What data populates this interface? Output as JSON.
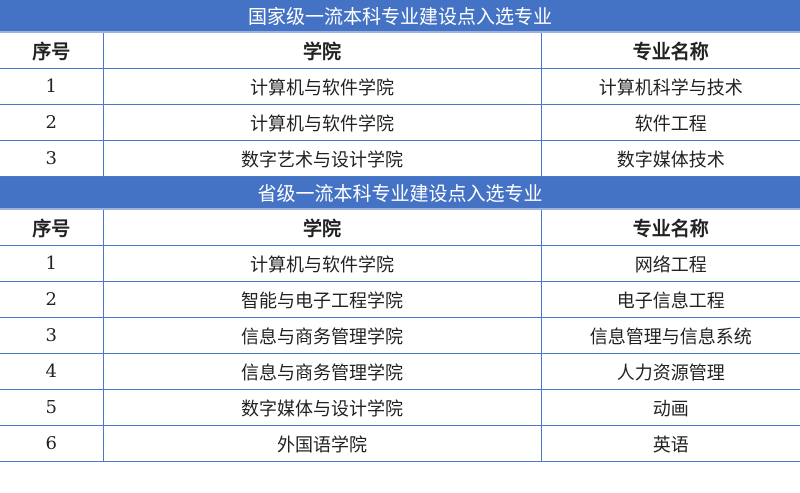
{
  "sections": [
    {
      "title": "国家级一流本科专业建设点入选专业",
      "headers": [
        "序号",
        "学院",
        "专业名称"
      ],
      "rows": [
        [
          "1",
          "计算机与软件学院",
          "计算机科学与技术"
        ],
        [
          "2",
          "计算机与软件学院",
          "软件工程"
        ],
        [
          "3",
          "数字艺术与设计学院",
          "数字媒体技术"
        ]
      ]
    },
    {
      "title": "省级一流本科专业建设点入选专业",
      "headers": [
        "序号",
        "学院",
        "专业名称"
      ],
      "rows": [
        [
          "1",
          "计算机与软件学院",
          "网络工程"
        ],
        [
          "2",
          "智能与电子工程学院",
          "电子信息工程"
        ],
        [
          "3",
          "信息与商务管理学院",
          "信息管理与信息系统"
        ],
        [
          "4",
          "信息与商务管理学院",
          "人力资源管理"
        ],
        [
          "5",
          "数字媒体与设计学院",
          "动画"
        ],
        [
          "6",
          "外国语学院",
          "英语"
        ]
      ]
    }
  ],
  "colors": {
    "title_bar": "#4472c4",
    "grid": "#4a78c8"
  }
}
